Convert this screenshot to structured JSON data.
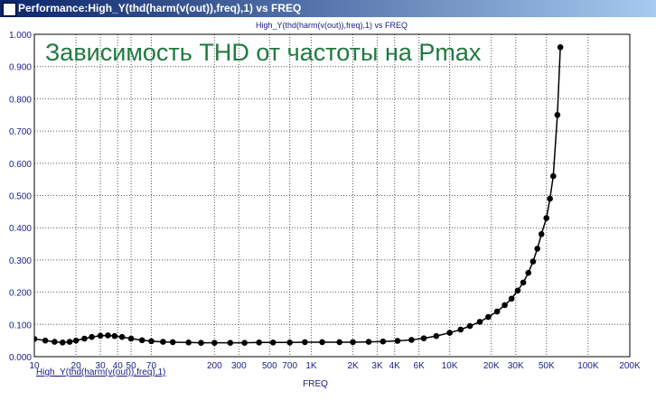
{
  "chart_data": {
    "type": "line",
    "window_title": "Performance:High_Y(thd(harm(v(out)),freq),1) vs FREQ",
    "title": "High_Y(thd(harm(v(out)),freq),1) vs FREQ",
    "annotation": "Зависимость THD от частоты на Pmax",
    "x_label": "FREQ",
    "log_x": true,
    "grid": true,
    "xlim": [
      10,
      200000
    ],
    "ylim": [
      0,
      1
    ],
    "xticks": [
      10,
      20,
      30,
      40,
      50,
      70,
      200,
      300,
      500,
      700,
      {
        "value": 1000,
        "label": "1K"
      },
      {
        "value": 2000,
        "label": "2K"
      },
      {
        "value": 3000,
        "label": "3K"
      },
      {
        "value": 4000,
        "label": "4K"
      },
      {
        "value": 6000,
        "label": "6K"
      },
      {
        "value": 10000,
        "label": "10K"
      },
      {
        "value": 20000,
        "label": "20K"
      },
      {
        "value": 30000,
        "label": "30K"
      },
      {
        "value": 50000,
        "label": "50K"
      },
      {
        "value": 100000,
        "label": "100K"
      },
      {
        "value": 200000,
        "label": "200K"
      }
    ],
    "yticks": [
      {
        "value": 0,
        "label": "0.000"
      },
      {
        "value": 0.1,
        "label": "0.100"
      },
      {
        "value": 0.2,
        "label": "0.200"
      },
      {
        "value": 0.3,
        "label": "0.300"
      },
      {
        "value": 0.4,
        "label": "0.400"
      },
      {
        "value": 0.5,
        "label": "0.500"
      },
      {
        "value": 0.6,
        "label": "0.600"
      },
      {
        "value": 0.7,
        "label": "0.700"
      },
      {
        "value": 0.8,
        "label": "0.800"
      },
      {
        "value": 0.9,
        "label": "0.900"
      },
      {
        "value": 1,
        "label": "1.000"
      }
    ],
    "x": [
      10,
      12,
      14,
      16,
      18,
      20,
      23,
      26,
      30,
      34,
      38,
      43,
      50,
      60,
      70,
      85,
      100,
      130,
      160,
      200,
      260,
      330,
      420,
      530,
      700,
      900,
      1200,
      1600,
      2000,
      2600,
      3300,
      4200,
      5300,
      6500,
      8000,
      10000,
      12000,
      14000,
      16500,
      19000,
      22000,
      25000,
      28000,
      31000,
      34000,
      37000,
      40000,
      43000,
      46000,
      50000,
      53000,
      56000,
      60000,
      63000
    ],
    "series": [
      {
        "name": "High_Y(thd(harm(v(out)),freq),1)",
        "color": "#000000",
        "values": [
          0.055,
          0.05,
          0.046,
          0.044,
          0.046,
          0.05,
          0.056,
          0.061,
          0.065,
          0.066,
          0.064,
          0.061,
          0.056,
          0.051,
          0.048,
          0.046,
          0.045,
          0.044,
          0.043,
          0.043,
          0.043,
          0.043,
          0.044,
          0.044,
          0.044,
          0.045,
          0.045,
          0.045,
          0.045,
          0.046,
          0.047,
          0.049,
          0.052,
          0.057,
          0.064,
          0.074,
          0.084,
          0.095,
          0.108,
          0.123,
          0.14,
          0.16,
          0.18,
          0.205,
          0.23,
          0.26,
          0.295,
          0.335,
          0.38,
          0.43,
          0.49,
          0.56,
          0.75,
          0.96
        ]
      }
    ]
  }
}
